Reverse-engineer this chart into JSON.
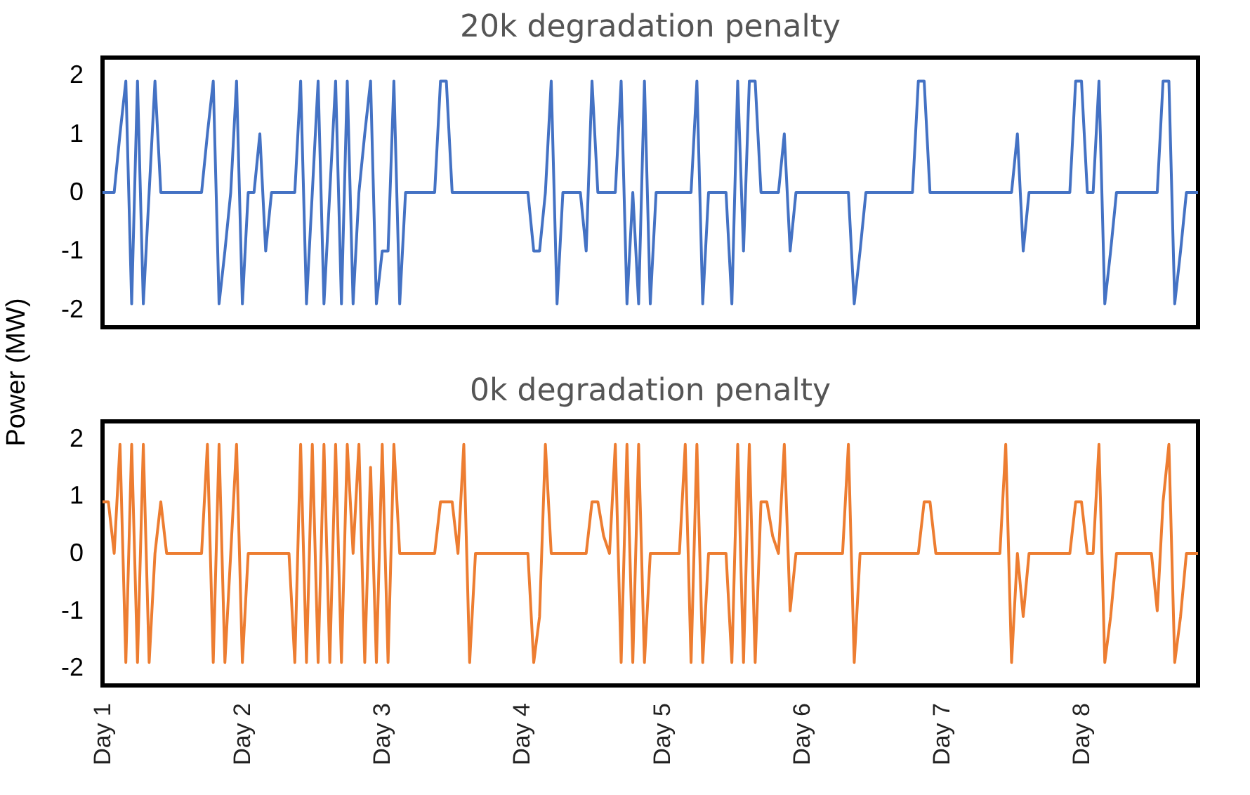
{
  "chart_data": [
    {
      "type": "line",
      "title": "20k degradation penalty",
      "ylabel": "Power (MW)",
      "categories": [
        null,
        null,
        null,
        null,
        null,
        null,
        null,
        null,
        null,
        null,
        null,
        null,
        null,
        null,
        null,
        null,
        null,
        null,
        null,
        null,
        null,
        null,
        null,
        null,
        null,
        null,
        null,
        null,
        null,
        null,
        null,
        null,
        null,
        null,
        null,
        null,
        null,
        null,
        null,
        null,
        null,
        null,
        null,
        null,
        null,
        null,
        null,
        null,
        null,
        null,
        null,
        null,
        null,
        null,
        null,
        null,
        null,
        null,
        null,
        null,
        null,
        null,
        null,
        null,
        null,
        null,
        null,
        null,
        null,
        null,
        null,
        null,
        null,
        null,
        null,
        null,
        null,
        null,
        null,
        null,
        null,
        null,
        null,
        null,
        null,
        null,
        null,
        null,
        null,
        null,
        null,
        null,
        null,
        null,
        null,
        null,
        null,
        null,
        null,
        null,
        null,
        null,
        null,
        null,
        null,
        null,
        null,
        null,
        null,
        null,
        null,
        null,
        null,
        null,
        null,
        null,
        null,
        null,
        null,
        null,
        null,
        null,
        null,
        null,
        null,
        null,
        null,
        null,
        null,
        null,
        null,
        null,
        null,
        null,
        null,
        null,
        null,
        null,
        null,
        null,
        null,
        null,
        null,
        null,
        null,
        null,
        null,
        null,
        null,
        null,
        null,
        null,
        null,
        null,
        null,
        null,
        null,
        null,
        null,
        null,
        null,
        null,
        null,
        null,
        null,
        null,
        null,
        null,
        null,
        null,
        null,
        null,
        null,
        null,
        null,
        null,
        null,
        null,
        null,
        null,
        null,
        null,
        null,
        null,
        null,
        null,
        null,
        null,
        null
      ],
      "series": [
        {
          "color": "#4472c4",
          "values": [
            0,
            0,
            0,
            1,
            1.9,
            -1.9,
            1.9,
            -1.9,
            0,
            1.9,
            0,
            0,
            0,
            0,
            0,
            0,
            0,
            0,
            1,
            1.9,
            -1.9,
            -1,
            0,
            1.9,
            -1.9,
            0,
            0,
            1,
            -1,
            0,
            0,
            0,
            0,
            0,
            1.9,
            -1.9,
            0,
            1.9,
            -1.9,
            0,
            1.9,
            -1.9,
            1.9,
            -1.9,
            0,
            1,
            1.9,
            -1.9,
            -1,
            -1,
            1.9,
            -1.9,
            0,
            0,
            0,
            0,
            0,
            0,
            1.9,
            1.9,
            0,
            0,
            0,
            0,
            0,
            0,
            0,
            0,
            0,
            0,
            0,
            0,
            0,
            0,
            -1,
            -1,
            0,
            1.9,
            -1.9,
            0,
            0,
            0,
            0,
            -1,
            1.9,
            0,
            0,
            0,
            0,
            1.9,
            -1.9,
            0,
            -1.9,
            1.9,
            -1.9,
            0,
            0,
            0,
            0,
            0,
            0,
            0,
            1.9,
            -1.9,
            0,
            0,
            0,
            0,
            -1.9,
            1.9,
            -1,
            1.9,
            1.9,
            0,
            0,
            0,
            0,
            1,
            -1,
            0,
            0,
            0,
            0,
            0,
            0,
            0,
            0,
            0,
            0,
            -1.9,
            -1,
            0,
            0,
            0,
            0,
            0,
            0,
            0,
            0,
            0,
            1.9,
            1.9,
            0,
            0,
            0,
            0,
            0,
            0,
            0,
            0,
            0,
            0,
            0,
            0,
            0,
            0,
            0,
            1,
            -1,
            0,
            0,
            0,
            0,
            0,
            0,
            0,
            0,
            1.9,
            1.9,
            0,
            0,
            1.9,
            -1.9,
            -1,
            0,
            0,
            0,
            0,
            0,
            0,
            0,
            0,
            1.9,
            1.9,
            -1.9,
            -1,
            0,
            0,
            0
          ]
        }
      ],
      "ylim": [
        -2.3,
        2.3
      ],
      "yticks": [
        -2,
        -1,
        0,
        1,
        2
      ],
      "tick_labels": "y"
    },
    {
      "type": "line",
      "title": "0k degradation penalty",
      "categories": [
        "Day 1",
        null,
        null,
        null,
        null,
        null,
        null,
        null,
        null,
        null,
        null,
        null,
        null,
        null,
        null,
        null,
        null,
        null,
        null,
        null,
        null,
        null,
        null,
        null,
        "Day 2",
        null,
        null,
        null,
        null,
        null,
        null,
        null,
        null,
        null,
        null,
        null,
        null,
        null,
        null,
        null,
        null,
        null,
        null,
        null,
        null,
        null,
        null,
        null,
        "Day 3",
        null,
        null,
        null,
        null,
        null,
        null,
        null,
        null,
        null,
        null,
        null,
        null,
        null,
        null,
        null,
        null,
        null,
        null,
        null,
        null,
        null,
        null,
        null,
        "Day 4",
        null,
        null,
        null,
        null,
        null,
        null,
        null,
        null,
        null,
        null,
        null,
        null,
        null,
        null,
        null,
        null,
        null,
        null,
        null,
        null,
        null,
        null,
        null,
        "Day 5",
        null,
        null,
        null,
        null,
        null,
        null,
        null,
        null,
        null,
        null,
        null,
        null,
        null,
        null,
        null,
        null,
        null,
        null,
        null,
        null,
        null,
        null,
        null,
        "Day 6",
        null,
        null,
        null,
        null,
        null,
        null,
        null,
        null,
        null,
        null,
        null,
        null,
        null,
        null,
        null,
        null,
        null,
        null,
        null,
        null,
        null,
        null,
        null,
        "Day 7",
        null,
        null,
        null,
        null,
        null,
        null,
        null,
        null,
        null,
        null,
        null,
        null,
        null,
        null,
        null,
        null,
        null,
        null,
        null,
        null,
        null,
        null,
        null,
        "Day 8",
        null,
        null,
        null,
        null,
        null,
        null,
        null,
        null,
        null,
        null,
        null,
        null,
        null,
        null,
        null,
        null,
        null,
        null,
        null,
        null
      ],
      "series": [
        {
          "color": "#ed7d31",
          "values": [
            0.9,
            0.9,
            0,
            1.9,
            -1.9,
            1.9,
            -1.9,
            1.9,
            -1.9,
            0,
            0.9,
            0,
            0,
            0,
            0,
            0,
            0,
            0,
            1.9,
            -1.9,
            1.9,
            -1.9,
            0,
            1.9,
            -1.9,
            0,
            0,
            0,
            0,
            0,
            0,
            0,
            0,
            -1.9,
            1.9,
            -1.9,
            1.9,
            -1.9,
            1.9,
            -1.9,
            1.9,
            -1.9,
            1.9,
            0,
            1.9,
            -1.9,
            1.5,
            -1.9,
            1.9,
            -1.9,
            1.9,
            0,
            0,
            0,
            0,
            0,
            0,
            0,
            0.9,
            0.9,
            0.9,
            0,
            1.9,
            -1.9,
            0,
            0,
            0,
            0,
            0,
            0,
            0,
            0,
            0,
            0,
            -1.9,
            -1.1,
            1.9,
            0,
            0,
            0,
            0,
            0,
            0,
            0,
            0.9,
            0.9,
            0.3,
            0,
            1.9,
            -1.9,
            1.9,
            -1.9,
            1.9,
            -1.9,
            0,
            0,
            0,
            0,
            0,
            0,
            1.9,
            -1.9,
            1.9,
            -1.9,
            0,
            0,
            0,
            0,
            -1.9,
            1.9,
            -1.9,
            1.9,
            -1.9,
            0.9,
            0.9,
            0.3,
            0,
            1.9,
            -1,
            0,
            0,
            0,
            0,
            0,
            0,
            0,
            0,
            0,
            1.9,
            -1.9,
            0,
            0,
            0,
            0,
            0,
            0,
            0,
            0,
            0,
            0,
            0,
            0.9,
            0.9,
            0,
            0,
            0,
            0,
            0,
            0,
            0,
            0,
            0,
            0,
            0,
            0,
            1.9,
            -1.9,
            0,
            -1.1,
            0,
            0,
            0,
            0,
            0,
            0,
            0,
            0,
            0.9,
            0.9,
            0,
            0,
            1.9,
            -1.9,
            -1.1,
            0,
            0,
            0,
            0,
            0,
            0,
            0,
            -1,
            0.9,
            1.9,
            -1.9,
            -1.1,
            0,
            0,
            0
          ]
        }
      ],
      "ylim": [
        -2.3,
        2.3
      ],
      "yticks": [
        -2,
        -1,
        0,
        1,
        2
      ]
    }
  ]
}
